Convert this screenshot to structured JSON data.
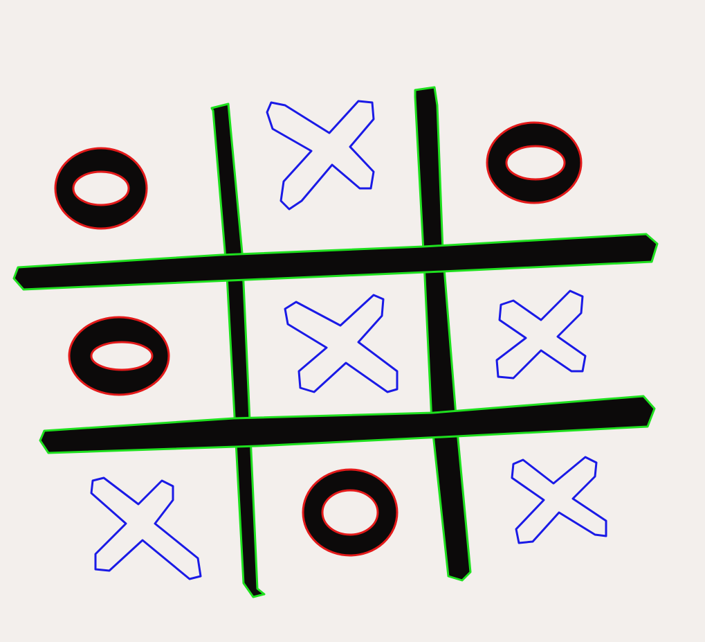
{
  "board": {
    "rows": [
      [
        "O",
        "X",
        "O"
      ],
      [
        "O",
        "X",
        "X"
      ],
      [
        "X",
        "O",
        "X"
      ]
    ]
  },
  "colors": {
    "paper": "#f3efec",
    "ink": "#0c0a0a",
    "grid_contour": "#1fe01f",
    "x_contour": "#1a1ae6",
    "o_contour": "#e31a1a"
  }
}
